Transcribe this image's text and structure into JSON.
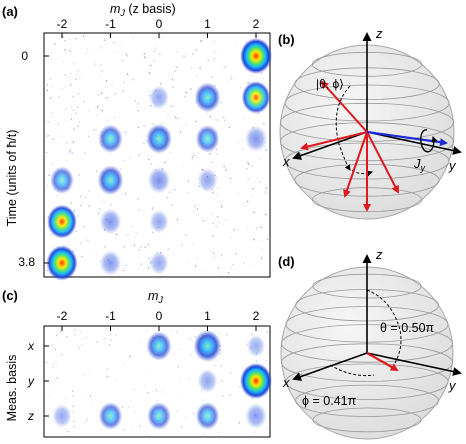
{
  "panels": {
    "a": {
      "label": "(a)",
      "xlabel": "m_J (z basis)",
      "xlabel_main": "m",
      "xlabel_sub": "J",
      "xlabel_rest": " (z basis)",
      "xticks": [
        "-2",
        "-1",
        "0",
        "1",
        "2"
      ],
      "ylabel": "Time (units of ħ/t)",
      "yticks": [
        "0",
        "3.8"
      ]
    },
    "b": {
      "label": "(b)",
      "axis_z": "z",
      "axis_x": "x",
      "axis_y": "y",
      "state_label": "|θ, ϕ⟩",
      "op_main": "J",
      "op_sub": "y"
    },
    "c": {
      "label": "(c)",
      "xlabel_main": "m",
      "xlabel_sub": "J",
      "xticks": [
        "-2",
        "-1",
        "0",
        "1",
        "2"
      ],
      "ylabel": "Meas. basis",
      "yticks": [
        "x",
        "y",
        "z"
      ]
    },
    "d": {
      "label": "(d)",
      "axis_z": "z",
      "axis_x": "x",
      "axis_y": "y",
      "theta_label": "θ = 0.50π",
      "phi_label": "ϕ = 0.41π"
    }
  },
  "colors": {
    "arrow_red": "#e0191e",
    "arrow_blue": "#1a2ad6",
    "sphere_fill": "#ececec",
    "sphere_line": "#9a9a9a"
  },
  "chart_data": [
    {
      "type": "heatmap",
      "panel": "a",
      "x": [
        -2,
        -1,
        0,
        1,
        2
      ],
      "time_rows": 6,
      "spots": [
        {
          "mJ": 2,
          "row": 0,
          "intensity": 1.0
        },
        {
          "mJ": 1,
          "row": 1,
          "intensity": 0.55
        },
        {
          "mJ": 2,
          "row": 1,
          "intensity": 0.75
        },
        {
          "mJ": 0,
          "row": 1,
          "intensity": 0.15
        },
        {
          "mJ": -1,
          "row": 2,
          "intensity": 0.45
        },
        {
          "mJ": 0,
          "row": 2,
          "intensity": 0.55
        },
        {
          "mJ": 1,
          "row": 2,
          "intensity": 0.4
        },
        {
          "mJ": 2,
          "row": 2,
          "intensity": 0.3
        },
        {
          "mJ": -2,
          "row": 3,
          "intensity": 0.4
        },
        {
          "mJ": -1,
          "row": 3,
          "intensity": 0.55
        },
        {
          "mJ": 0,
          "row": 3,
          "intensity": 0.35
        },
        {
          "mJ": 1,
          "row": 3,
          "intensity": 0.15
        },
        {
          "mJ": -2,
          "row": 4,
          "intensity": 0.85
        },
        {
          "mJ": -1,
          "row": 4,
          "intensity": 0.3
        },
        {
          "mJ": 0,
          "row": 4,
          "intensity": 0.12
        },
        {
          "mJ": -2,
          "row": 5,
          "intensity": 0.95
        },
        {
          "mJ": -1,
          "row": 5,
          "intensity": 0.25
        },
        {
          "mJ": 0,
          "row": 5,
          "intensity": 0.1
        }
      ]
    },
    {
      "type": "heatmap",
      "panel": "c",
      "x": [
        -2,
        -1,
        0,
        1,
        2
      ],
      "rows": [
        "x",
        "y",
        "z"
      ],
      "spots": [
        {
          "mJ": 0,
          "row": "x",
          "intensity": 0.5
        },
        {
          "mJ": 1,
          "row": "x",
          "intensity": 0.7
        },
        {
          "mJ": 2,
          "row": "x",
          "intensity": 0.05
        },
        {
          "mJ": 1,
          "row": "y",
          "intensity": 0.15
        },
        {
          "mJ": 2,
          "row": "y",
          "intensity": 1.0
        },
        {
          "mJ": -2,
          "row": "z",
          "intensity": 0.1
        },
        {
          "mJ": -1,
          "row": "z",
          "intensity": 0.4
        },
        {
          "mJ": 0,
          "row": "z",
          "intensity": 0.4
        },
        {
          "mJ": 1,
          "row": "z",
          "intensity": 0.4
        },
        {
          "mJ": 2,
          "row": "z",
          "intensity": 0.25
        }
      ]
    }
  ]
}
